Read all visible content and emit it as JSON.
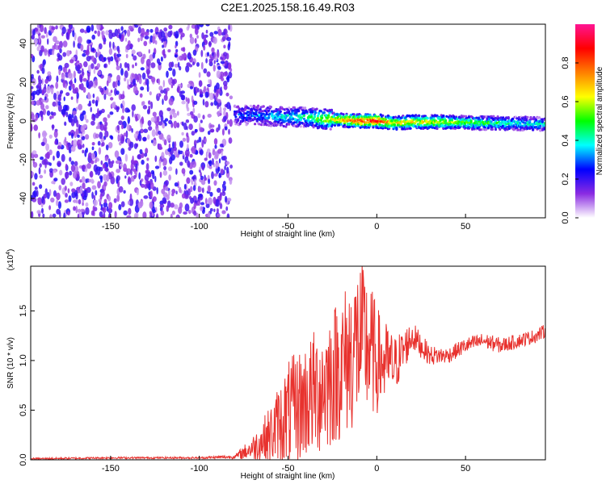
{
  "figure": {
    "title": "C2E1.2025.158.16.49.R03"
  },
  "chart_data": [
    {
      "type": "heatmap",
      "xlabel": "Height of straight line (km)",
      "ylabel": "Frequency (Hz)",
      "xlim": [
        -195,
        95
      ],
      "ylim": [
        -50,
        50
      ],
      "x_ticks": [
        -150,
        -100,
        -50,
        0,
        50
      ],
      "y_ticks": [
        -40,
        -20,
        0,
        20,
        40
      ],
      "grid": false,
      "noise_region_x": [
        -195,
        -82
      ],
      "signal_track": {
        "x": [
          -80,
          -70,
          -60,
          -50,
          -40,
          -30,
          -20,
          -10,
          0,
          10,
          20,
          30,
          40,
          50,
          60,
          70,
          80,
          90,
          95
        ],
        "center_hz": [
          3,
          3,
          2.5,
          2,
          2,
          1,
          0.5,
          0,
          0,
          -1,
          -0.5,
          -0.5,
          -0.5,
          -0.8,
          -1,
          -1.2,
          -1.3,
          -1.5,
          -1.5
        ],
        "amplitude": [
          0.25,
          0.3,
          0.35,
          0.4,
          0.45,
          0.6,
          0.7,
          0.85,
          0.9,
          0.65,
          0.7,
          0.65,
          0.6,
          0.55,
          0.5,
          0.45,
          0.4,
          0.4,
          0.4
        ]
      },
      "colorbar": {
        "label": "Normalized spectral amplitude",
        "range": [
          0,
          1
        ],
        "ticks": [
          "0.0",
          "0.2",
          "0.4",
          "0.6",
          "0.8"
        ],
        "colors": [
          "#ffffff",
          "#8a2be2",
          "#0000ff",
          "#00ffff",
          "#00ff00",
          "#ffff00",
          "#ff8000",
          "#ff0000",
          "#ff1493"
        ]
      }
    },
    {
      "type": "line",
      "xlabel": "Height of straight line (km)",
      "ylabel": "SNR (10 * v/v)",
      "y_multiplier": "(x10",
      "y_multiplier_exp": "4",
      "y_multiplier_close": ")",
      "xlim": [
        -195,
        95
      ],
      "ylim": [
        0,
        1.95
      ],
      "x_ticks": [
        -150,
        -100,
        -50,
        0,
        50
      ],
      "y_ticks": [
        "0.0",
        "0.5",
        "1.0",
        "1.5"
      ],
      "color": "#e8322e",
      "grid": false,
      "series": [
        {
          "envelope_x": [
            -195,
            -150,
            -100,
            -80,
            -70,
            -60,
            -50,
            -40,
            -30,
            -20,
            -15,
            -10,
            -5,
            0,
            10,
            20,
            30,
            40,
            50,
            60,
            70,
            80,
            90,
            95
          ],
          "envelope_y": [
            0.01,
            0.02,
            0.02,
            0.03,
            0.12,
            0.25,
            0.45,
            0.6,
            0.75,
            0.95,
            1.05,
            1.2,
            1.15,
            1.0,
            0.95,
            1.25,
            1.05,
            1.05,
            1.15,
            1.2,
            1.15,
            1.2,
            1.25,
            1.3
          ],
          "spread_y": [
            0.01,
            0.01,
            0.01,
            0.02,
            0.12,
            0.3,
            0.55,
            0.6,
            0.7,
            0.75,
            0.8,
            0.85,
            0.75,
            0.55,
            0.3,
            0.15,
            0.1,
            0.08,
            0.08,
            0.08,
            0.08,
            0.07,
            0.07,
            0.07
          ]
        }
      ]
    }
  ]
}
